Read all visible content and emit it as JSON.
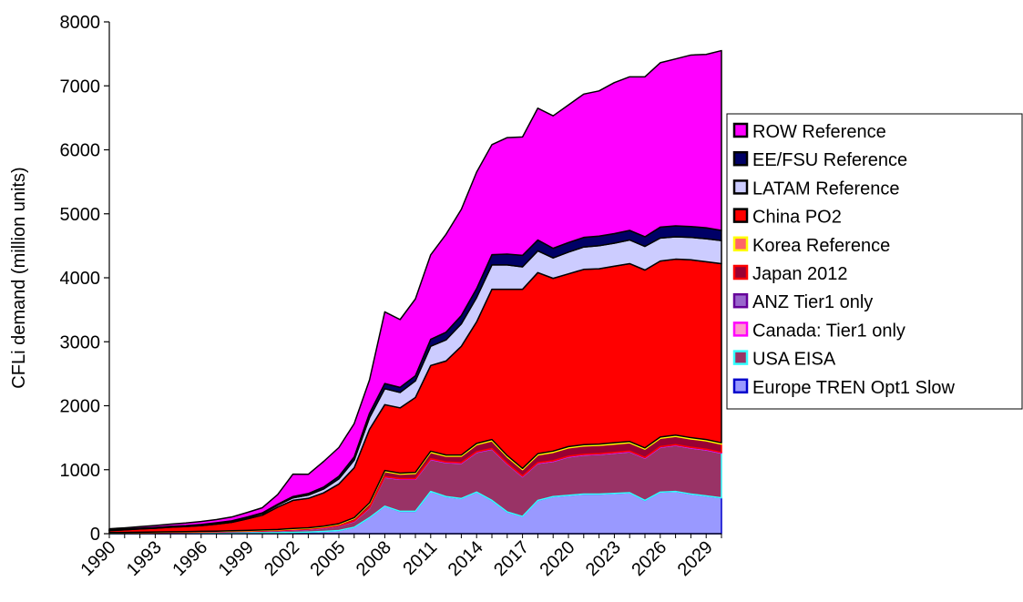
{
  "chart_data": {
    "type": "area",
    "stacked": true,
    "title": "",
    "xlabel": "",
    "ylabel": "CFLi demand (million units)",
    "ylim": [
      0,
      8000
    ],
    "yticks": [
      0,
      1000,
      2000,
      3000,
      4000,
      5000,
      6000,
      7000,
      8000
    ],
    "xlim": [
      1990,
      2030
    ],
    "xticks": [
      1990,
      1993,
      1996,
      1999,
      2002,
      2005,
      2008,
      2011,
      2014,
      2017,
      2020,
      2023,
      2026,
      2029
    ],
    "grid": false,
    "legend_placement": "right",
    "x": [
      1990,
      1991,
      1992,
      1993,
      1994,
      1995,
      1996,
      1997,
      1998,
      1999,
      2000,
      2001,
      2002,
      2003,
      2004,
      2005,
      2006,
      2007,
      2008,
      2009,
      2010,
      2011,
      2012,
      2013,
      2014,
      2015,
      2016,
      2017,
      2018,
      2019,
      2020,
      2021,
      2022,
      2023,
      2024,
      2025,
      2026,
      2027,
      2028,
      2029,
      2030
    ],
    "series": [
      {
        "name": "Europe TREN Opt1 Slow",
        "color": "#9999ff",
        "edge": "#0000cc",
        "values": [
          2,
          3,
          4,
          5,
          6,
          7,
          8,
          9,
          10,
          12,
          14,
          16,
          20,
          25,
          35,
          50,
          100,
          250,
          430,
          350,
          350,
          660,
          580,
          550,
          650,
          520,
          340,
          270,
          520,
          580,
          600,
          620,
          620,
          630,
          640,
          520,
          650,
          660,
          620,
          590,
          560
        ]
      },
      {
        "name": "USA EISA",
        "color": "#993366",
        "edge": "#33ffff",
        "values": [
          10,
          10,
          12,
          12,
          14,
          14,
          16,
          18,
          20,
          22,
          25,
          30,
          35,
          40,
          50,
          70,
          90,
          150,
          450,
          500,
          500,
          500,
          530,
          550,
          620,
          800,
          750,
          620,
          580,
          550,
          600,
          610,
          620,
          630,
          640,
          660,
          700,
          720,
          720,
          720,
          700
        ]
      },
      {
        "name": "Canada: Tier1 only",
        "color": "#ff99cc",
        "edge": "#ff00ff",
        "values": [
          1,
          1,
          1,
          1,
          2,
          2,
          2,
          2,
          3,
          3,
          3,
          3,
          4,
          4,
          5,
          5,
          6,
          6,
          8,
          8,
          8,
          8,
          8,
          8,
          8,
          8,
          8,
          8,
          8,
          8,
          8,
          8,
          8,
          8,
          8,
          8,
          8,
          8,
          8,
          8,
          8
        ]
      },
      {
        "name": "ANZ Tier1 only",
        "color": "#9966cc",
        "edge": "#660099",
        "values": [
          1,
          1,
          1,
          1,
          1,
          1,
          1,
          1,
          1,
          1,
          1,
          1,
          2,
          2,
          2,
          2,
          2,
          2,
          3,
          3,
          3,
          3,
          3,
          3,
          3,
          3,
          3,
          3,
          3,
          3,
          3,
          3,
          3,
          3,
          3,
          3,
          3,
          3,
          3,
          3,
          3
        ]
      },
      {
        "name": "Japan 2012",
        "color": "#990033",
        "edge": "#ff0000",
        "values": [
          3,
          3,
          4,
          4,
          5,
          5,
          6,
          6,
          8,
          8,
          10,
          10,
          12,
          14,
          16,
          20,
          40,
          60,
          80,
          70,
          80,
          100,
          90,
          100,
          110,
          120,
          100,
          100,
          120,
          130,
          130,
          130,
          130,
          130,
          130,
          130,
          130,
          130,
          130,
          130,
          130
        ]
      },
      {
        "name": "Korea Reference",
        "color": "#ff6666",
        "edge": "#ffff00",
        "values": [
          2,
          2,
          2,
          3,
          3,
          3,
          4,
          4,
          5,
          5,
          6,
          6,
          8,
          8,
          10,
          10,
          12,
          14,
          16,
          16,
          18,
          18,
          18,
          18,
          20,
          20,
          20,
          20,
          20,
          20,
          20,
          20,
          20,
          20,
          20,
          20,
          20,
          20,
          20,
          20,
          20
        ]
      },
      {
        "name": "China PO2",
        "color": "#ff0000",
        "edge": "#000000",
        "values": [
          30,
          40,
          50,
          60,
          70,
          80,
          90,
          110,
          130,
          180,
          230,
          350,
          440,
          460,
          520,
          620,
          780,
          1150,
          1030,
          1020,
          1170,
          1340,
          1470,
          1700,
          1900,
          2350,
          2600,
          2800,
          2830,
          2700,
          2700,
          2740,
          2740,
          2760,
          2780,
          2780,
          2750,
          2750,
          2780,
          2780,
          2800
        ]
      },
      {
        "name": "LATAM Reference",
        "color": "#ccccff",
        "edge": "#000000",
        "values": [
          5,
          6,
          7,
          8,
          9,
          10,
          12,
          14,
          16,
          20,
          25,
          30,
          40,
          50,
          60,
          80,
          120,
          180,
          250,
          240,
          260,
          300,
          330,
          350,
          380,
          380,
          380,
          350,
          340,
          320,
          340,
          350,
          360,
          360,
          370,
          370,
          360,
          350,
          350,
          360,
          360
        ]
      },
      {
        "name": "EE/FSU Reference",
        "color": "#000066",
        "edge": "#000000",
        "values": [
          3,
          3,
          4,
          4,
          5,
          5,
          6,
          7,
          8,
          10,
          12,
          15,
          20,
          25,
          30,
          40,
          50,
          70,
          80,
          80,
          80,
          110,
          120,
          130,
          140,
          160,
          170,
          180,
          170,
          150,
          150,
          150,
          150,
          150,
          150,
          150,
          170,
          170,
          170,
          170,
          160
        ]
      },
      {
        "name": "ROW Reference",
        "color": "#ff00ff",
        "edge": "#000000",
        "values": [
          20,
          22,
          25,
          30,
          35,
          40,
          45,
          50,
          60,
          70,
          80,
          150,
          350,
          300,
          400,
          450,
          520,
          520,
          1120,
          1060,
          1200,
          1320,
          1530,
          1660,
          1820,
          1720,
          1820,
          1850,
          2060,
          2070,
          2150,
          2240,
          2270,
          2360,
          2400,
          2500,
          2570,
          2610,
          2680,
          2710,
          2810
        ]
      }
    ]
  }
}
